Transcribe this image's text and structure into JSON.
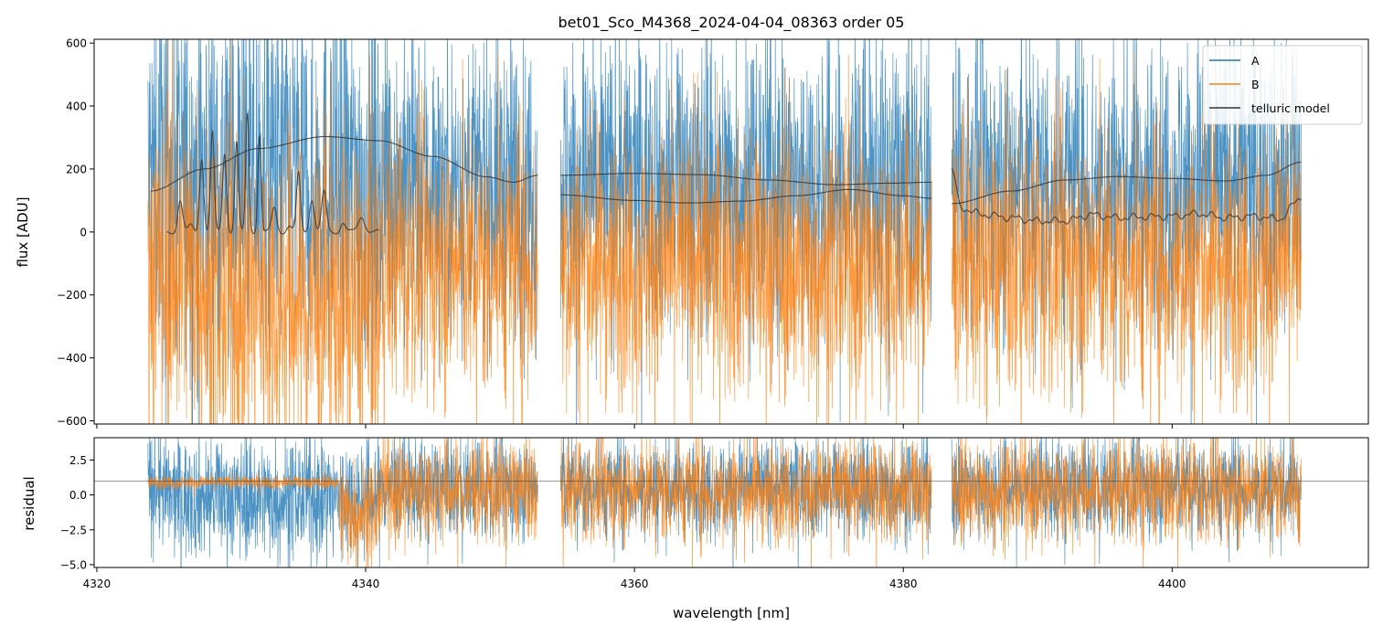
{
  "chart_data": [
    {
      "type": "line",
      "panel": "top",
      "title": "bet01_Sco_M4368_2024-04-04_08363  order 05",
      "ylabel": "flux [ADU]",
      "xlim": [
        4319.8,
        4414.6
      ],
      "ylim": [
        -610,
        612
      ],
      "yticks": [
        -600,
        -400,
        -200,
        0,
        200,
        400,
        600
      ],
      "yticklabels": [
        "−600",
        "−400",
        "−200",
        "0",
        "200",
        "400",
        "600"
      ],
      "segments": [
        [
          4323.8,
          4352.8
        ],
        [
          4354.5,
          4382.1
        ],
        [
          4383.6,
          4409.6
        ]
      ],
      "series": [
        {
          "name": "A",
          "color": "#1f77b4",
          "center": 150,
          "noise_amplitude": 240
        },
        {
          "name": "B",
          "color": "#ff7f0e",
          "center": -100,
          "noise_amplitude": 230
        },
        {
          "name": "telluric model",
          "color": "#333333",
          "continuum_A": [
            [
              4324.0,
              130
            ],
            [
              4328,
              200
            ],
            [
              4332,
              265
            ],
            [
              4337,
              303
            ],
            [
              4341,
              290
            ],
            [
              4345,
              240
            ],
            [
              4349,
              175
            ],
            [
              4351,
              158
            ],
            [
              4352.8,
              180
            ],
            [
              4354.5,
              180
            ],
            [
              4360,
              186
            ],
            [
              4365,
              182
            ],
            [
              4370,
              165
            ],
            [
              4375,
              150
            ],
            [
              4379,
              155
            ],
            [
              4382.1,
              158
            ],
            [
              4383.6,
              90
            ],
            [
              4388,
              130
            ],
            [
              4392,
              165
            ],
            [
              4396,
              176
            ],
            [
              4400,
              170
            ],
            [
              4404,
              162
            ],
            [
              4407,
              180
            ],
            [
              4409.6,
              222
            ]
          ],
          "continuum_B": [
            [
              4354.5,
              118
            ],
            [
              4360,
              100
            ],
            [
              4364,
              92
            ],
            [
              4368,
              98
            ],
            [
              4372,
              115
            ],
            [
              4376,
              135
            ],
            [
              4380,
              115
            ],
            [
              4382.1,
              107
            ]
          ],
          "absorption_lines": [
            [
              4325.2,
              0,
              0
            ],
            [
              4326.2,
              100,
              0.3
            ],
            [
              4327.0,
              20,
              0.3
            ],
            [
              4327.8,
              235,
              0.25
            ],
            [
              4328.6,
              315,
              0.22
            ],
            [
              4329.5,
              250,
              0.25
            ],
            [
              4330.4,
              285,
              0.22
            ],
            [
              4331.2,
              375,
              0.2
            ],
            [
              4332.1,
              310,
              0.2
            ],
            [
              4333.2,
              75,
              0.3
            ],
            [
              4334.3,
              20,
              0.3
            ],
            [
              4335.0,
              185,
              0.25
            ],
            [
              4336.0,
              105,
              0.3
            ],
            [
              4336.9,
              125,
              0.3
            ],
            [
              4338.3,
              30,
              0.3
            ],
            [
              4339.7,
              50,
              0.4
            ],
            [
              4341.0,
              0,
              0
            ]
          ],
          "baseline_right": [
            [
              4383.6,
              200
            ],
            [
              4384.3,
              75
            ],
            [
              4386,
              55
            ],
            [
              4388,
              45
            ],
            [
              4390,
              35
            ],
            [
              4392,
              35
            ],
            [
              4394,
              55
            ],
            [
              4396,
              45
            ],
            [
              4398,
              48
            ],
            [
              4400,
              50
            ],
            [
              4402,
              58
            ],
            [
              4404,
              45
            ],
            [
              4406,
              50
            ],
            [
              4408,
              42
            ],
            [
              4409.6,
              110
            ]
          ]
        }
      ],
      "legend": [
        "A",
        "B",
        "telluric model"
      ],
      "legend_location": "top-right"
    },
    {
      "type": "line",
      "panel": "bottom",
      "xlabel": "wavelength [nm]",
      "ylabel": "residual",
      "xlim": [
        4319.8,
        4414.6
      ],
      "ylim": [
        -5.2,
        4.1
      ],
      "xticks": [
        4320,
        4340,
        4360,
        4380,
        4400
      ],
      "xticklabels": [
        "4320",
        "4340",
        "4360",
        "4380",
        "4400"
      ],
      "yticks": [
        -5.0,
        -2.5,
        0.0,
        2.5
      ],
      "yticklabels": [
        "−5.0",
        "−2.5",
        "0.0",
        "2.5"
      ],
      "reference_line": 1.0,
      "series": [
        {
          "name": "A",
          "color": "#1f77b4",
          "center": 0.5,
          "noise_amplitude": 1.8
        },
        {
          "name": "B",
          "color": "#ff7f0e",
          "center": 0.3,
          "noise_amplitude": 1.9
        }
      ]
    }
  ]
}
